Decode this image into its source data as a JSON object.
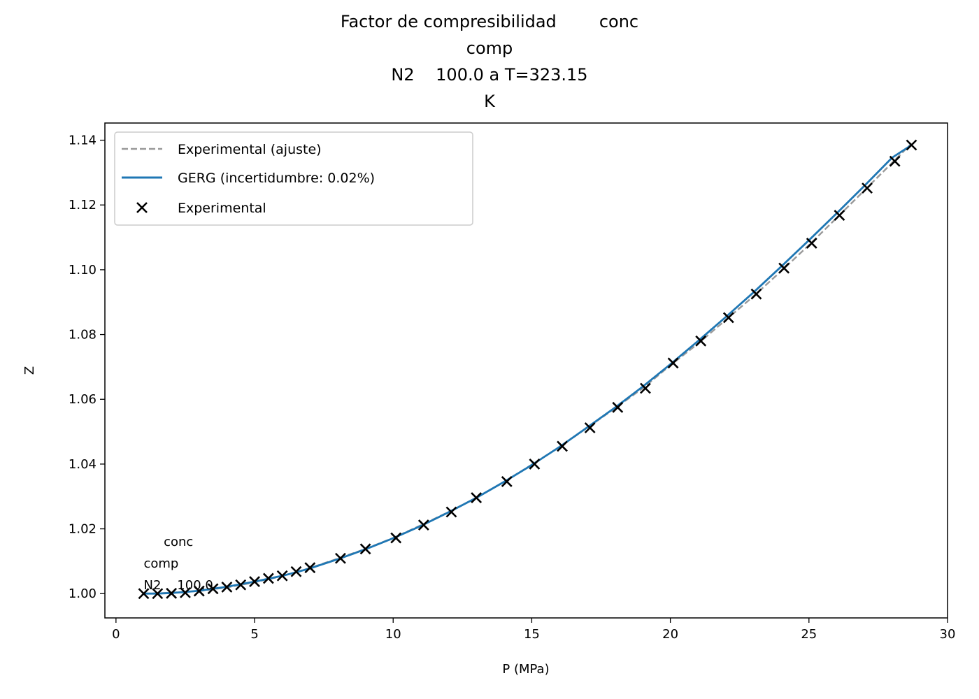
{
  "chart_data": {
    "type": "line",
    "title_lines": [
      "Factor de compresibilidad        conc",
      "comp",
      "N2    100.0 a T=323.15",
      "K"
    ],
    "xlabel": "P (MPa)",
    "ylabel": "Z",
    "xlim": [
      -0.4,
      30.0
    ],
    "ylim": [
      0.9925,
      1.1453
    ],
    "xticks": [
      0,
      5,
      10,
      15,
      20,
      25,
      30
    ],
    "xtick_labels": [
      "0",
      "5",
      "10",
      "15",
      "20",
      "25",
      "30"
    ],
    "yticks": [
      1.0,
      1.02,
      1.04,
      1.06,
      1.08,
      1.1,
      1.12,
      1.14
    ],
    "ytick_labels": [
      "1.00",
      "1.02",
      "1.04",
      "1.06",
      "1.08",
      "1.10",
      "1.12",
      "1.14"
    ],
    "grid": false,
    "legend_position": "upper-left",
    "colors": {
      "fit": "#999999",
      "gerg": "#1f77b4",
      "markers": "#000000"
    },
    "series": [
      {
        "name": "Experimental (ajuste)",
        "kind": "dashed-line",
        "x": [
          1.0,
          1.5,
          2.0,
          3.0,
          4.0,
          5.0,
          6.0,
          7.0,
          8.0,
          9.0,
          10.0,
          11.0,
          12.0,
          13.0,
          14.0,
          15.0,
          16.0,
          17.0,
          18.0,
          19.0,
          20.0,
          21.0,
          22.0,
          23.0,
          24.0,
          25.0,
          26.0,
          27.0,
          28.0,
          28.7
        ],
        "y": [
          1.0,
          1.0001,
          1.0003,
          1.0008,
          1.0019,
          1.0035,
          1.0054,
          1.0079,
          1.0108,
          1.0138,
          1.0172,
          1.0211,
          1.0252,
          1.0296,
          1.0345,
          1.0398,
          1.0453,
          1.0512,
          1.0572,
          1.0634,
          1.0705,
          1.0772,
          1.0845,
          1.0918,
          1.0996,
          1.1076,
          1.116,
          1.1245,
          1.133,
          1.139
        ]
      },
      {
        "name": "GERG (incertidumbre: 0.02%)",
        "kind": "solid-line",
        "x": [
          1.0,
          1.5,
          2.0,
          2.5,
          3.0,
          3.5,
          4.0,
          4.5,
          5.0,
          5.5,
          6.0,
          6.5,
          7.0,
          8.0,
          9.0,
          10.0,
          11.0,
          12.0,
          13.0,
          14.0,
          15.0,
          16.0,
          17.0,
          18.0,
          19.0,
          20.0,
          21.0,
          22.0,
          23.0,
          24.0,
          25.0,
          26.0,
          27.0,
          28.0,
          28.7
        ],
        "y": [
          1.0,
          1.0,
          1.0002,
          1.0005,
          1.0009,
          1.0015,
          1.0021,
          1.0029,
          1.0037,
          1.0046,
          1.0055,
          1.0066,
          1.0078,
          1.0106,
          1.0137,
          1.0171,
          1.0209,
          1.0251,
          1.0296,
          1.0345,
          1.0397,
          1.0453,
          1.0513,
          1.0574,
          1.0639,
          1.0708,
          1.078,
          1.0854,
          1.093,
          1.101,
          1.1091,
          1.1174,
          1.1259,
          1.1346,
          1.1385
        ]
      },
      {
        "name": "Experimental",
        "kind": "x-markers",
        "x": [
          1.0,
          1.5,
          2.0,
          2.5,
          3.0,
          3.5,
          4.0,
          4.5,
          5.0,
          5.5,
          6.0,
          6.5,
          7.0,
          8.1,
          9.0,
          10.1,
          11.1,
          12.1,
          13.0,
          14.1,
          15.1,
          16.1,
          17.1,
          18.1,
          19.1,
          20.1,
          21.1,
          22.1,
          23.1,
          24.1,
          25.1,
          26.1,
          27.1,
          28.1,
          28.7
        ],
        "y": [
          1.0,
          1.0,
          1.0001,
          1.0003,
          1.0008,
          1.0015,
          1.002,
          1.0027,
          1.0037,
          1.0047,
          1.0055,
          1.0068,
          1.008,
          1.0109,
          1.0138,
          1.0172,
          1.0212,
          1.0252,
          1.0296,
          1.0346,
          1.04,
          1.0455,
          1.0512,
          1.0575,
          1.0634,
          1.0712,
          1.078,
          1.0852,
          1.0925,
          1.1005,
          1.1082,
          1.1168,
          1.1252,
          1.1335,
          1.1385
        ]
      }
    ],
    "annotation": {
      "lines": [
        "     conc",
        "comp",
        "N2    100.0"
      ],
      "x": 1.0,
      "y": 1.0
    }
  }
}
